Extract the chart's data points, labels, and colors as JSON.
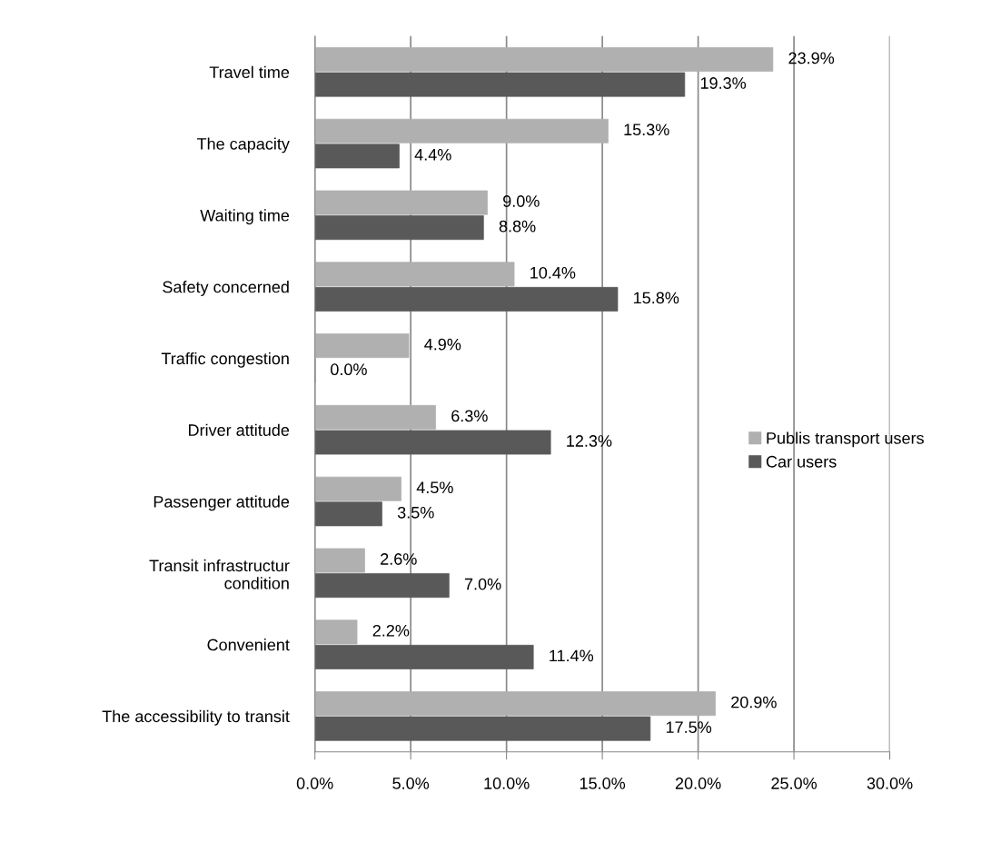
{
  "chart_data": {
    "type": "bar",
    "orientation": "horizontal",
    "categories": [
      "Travel time",
      "The capacity",
      "Waiting time",
      "Safety concerned",
      "Traffic congestion",
      "Driver attitude",
      "Passenger attitude",
      "Transit infrastructur\ncondition",
      "Convenient",
      "The accessibility to transit"
    ],
    "series": [
      {
        "name": "Publis transport users",
        "color": "#b0b0b0",
        "values": [
          23.9,
          15.3,
          9.0,
          10.4,
          4.9,
          6.3,
          4.5,
          2.6,
          2.2,
          20.9
        ],
        "value_labels": [
          "23.9%",
          "15.3%",
          "9.0%",
          "10.4%",
          "4.9%",
          "6.3%",
          "4.5%",
          "2.6%",
          "2.2%",
          "20.9%"
        ]
      },
      {
        "name": "Car users",
        "color": "#595959",
        "values": [
          19.3,
          4.4,
          8.8,
          15.8,
          0.0,
          12.3,
          3.5,
          7.0,
          11.4,
          17.5
        ],
        "value_labels": [
          "19.3%",
          "4.4%",
          "8.8%",
          "15.8%",
          "0.0%",
          "12.3%",
          "3.5%",
          "7.0%",
          "11.4%",
          "17.5%"
        ]
      }
    ],
    "xlim": [
      0,
      30
    ],
    "xticks": [
      {
        "value": 0,
        "label": "0.0%"
      },
      {
        "value": 5,
        "label": "5.0%"
      },
      {
        "value": 10,
        "label": "10.0%"
      },
      {
        "value": 15,
        "label": "15.0%"
      },
      {
        "value": 20,
        "label": "20.0%"
      },
      {
        "value": 25,
        "label": "25.0%"
      },
      {
        "value": 30,
        "label": "30.0%"
      }
    ],
    "grid": "x",
    "legend": "right"
  }
}
